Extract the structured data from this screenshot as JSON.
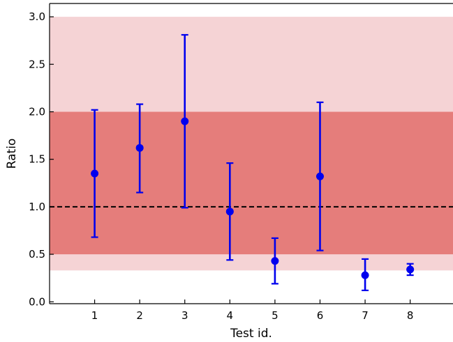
{
  "chart_data": {
    "type": "scatter",
    "title": "",
    "xlabel": "Test id.",
    "ylabel": "Ratio",
    "xlim": [
      0,
      8.95
    ],
    "ylim": [
      -0.02,
      3.14
    ],
    "xticks": [
      1,
      2,
      3,
      4,
      5,
      6,
      7,
      8
    ],
    "xtick_labels": [
      "1",
      "2",
      "3",
      "4",
      "5",
      "6",
      "7",
      "8"
    ],
    "yticks": [
      0.0,
      0.5,
      1.0,
      1.5,
      2.0,
      2.5,
      3.0
    ],
    "ytick_labels": [
      "0.0",
      "0.5",
      "1.0",
      "1.5",
      "2.0",
      "2.5",
      "3.0"
    ],
    "grid": false,
    "series": [
      {
        "x": [
          1,
          2,
          3,
          4,
          5,
          6,
          7,
          8
        ],
        "y": [
          1.35,
          1.62,
          1.9,
          0.95,
          0.43,
          1.32,
          0.28,
          0.34
        ],
        "yerr_low": [
          0.67,
          0.47,
          0.91,
          0.51,
          0.24,
          0.78,
          0.16,
          0.06
        ],
        "yerr_high": [
          0.67,
          0.46,
          0.91,
          0.51,
          0.24,
          0.78,
          0.17,
          0.06
        ],
        "color": "#0000ee"
      }
    ],
    "bands": [
      {
        "y0": 0.33,
        "y1": 3.0,
        "color": "#f5d3d5"
      },
      {
        "y0": 0.5,
        "y1": 2.0,
        "color": "#e57d7b"
      }
    ],
    "reference_line": {
      "y": 1.0,
      "style": "dashed",
      "color": "#000000"
    }
  }
}
